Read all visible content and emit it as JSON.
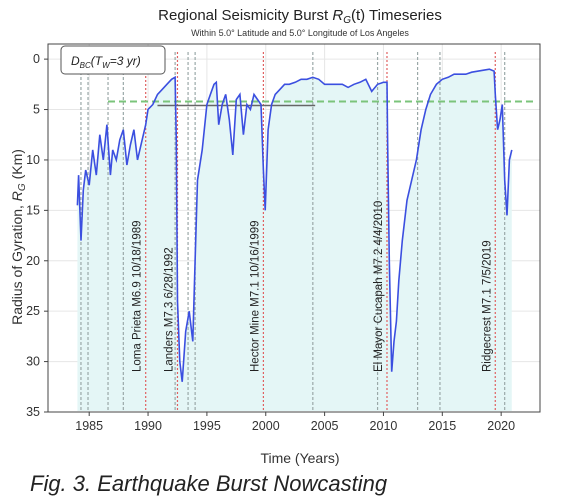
{
  "caption": "Fig. 3. Earthquake Burst Nowcasting",
  "colors": {
    "series": "#3b4fe0",
    "fill": "#e4f6f6",
    "threshold": "#7bc47b",
    "event_major": "#e06060",
    "event_minor": "#9aa8a8"
  },
  "chart_data": {
    "type": "line",
    "title": "Regional Seismicity Burst R_G(t) Timeseries",
    "title_parts": {
      "pre": "Regional Seismicity Burst ",
      "symbol": "R",
      "sub": "G",
      "post": "(t) Timeseries"
    },
    "subtitle": "Within 5.0° Latitude and 5.0° Longitude of Los Angeles",
    "xlabel": "Time (Years)",
    "ylabel": "Radius of Gyration, R_G (Km)",
    "ylabel_parts": {
      "pre": "Radius of Gyration, ",
      "symbol": "R",
      "sub": "G",
      "post": " (Km)"
    },
    "xlim": [
      1981.5,
      2023.3
    ],
    "ylim": [
      35,
      -1.5
    ],
    "y_inverted": true,
    "grid": true,
    "xticks": [
      1985,
      1990,
      1995,
      2000,
      2005,
      2010,
      2015,
      2020
    ],
    "yticks": [
      0,
      5,
      10,
      15,
      20,
      25,
      30,
      35
    ],
    "legend": {
      "placement": "top-left",
      "label": "D_BC(T_W=3 yr)",
      "label_parts": {
        "main": "D",
        "sub": "BC",
        "paren_open": "(T",
        "sub2": "W",
        "post": "=3 yr)"
      }
    },
    "threshold": {
      "value": 4.2
    },
    "secondary_band": {
      "x": [
        1990.8,
        2004.2
      ],
      "y": 4.6
    },
    "events": [
      {
        "label": "Loma Prieta  M6.9  10/18/1989",
        "x": 1989.8,
        "major": true,
        "show_label": true
      },
      {
        "label": "Landers  M7.3  6/28/1992",
        "x": 1992.5,
        "major": true,
        "show_label": true
      },
      {
        "label": "Hector Mine  M7.1  10/16/1999",
        "x": 1999.8,
        "major": true,
        "show_label": true
      },
      {
        "label": "El Mayor Cucapah  M7.2  4/4/2010",
        "x": 2010.3,
        "major": true,
        "show_label": true
      },
      {
        "label": "Ridgecrest  M7.1  7/5/2019",
        "x": 2019.5,
        "major": true,
        "show_label": true
      },
      {
        "label": "",
        "x": 1984.3,
        "major": false,
        "show_label": false
      },
      {
        "label": "",
        "x": 1984.9,
        "major": false,
        "show_label": false
      },
      {
        "label": "",
        "x": 1986.6,
        "major": false,
        "show_label": false
      },
      {
        "label": "",
        "x": 1987.9,
        "major": false,
        "show_label": false
      },
      {
        "label": "",
        "x": 1992.3,
        "major": false,
        "show_label": false
      },
      {
        "label": "",
        "x": 1993.4,
        "major": false,
        "show_label": false
      },
      {
        "label": "",
        "x": 1994.0,
        "major": false,
        "show_label": false
      },
      {
        "label": "",
        "x": 2004.0,
        "major": false,
        "show_label": false
      },
      {
        "label": "",
        "x": 2009.5,
        "major": false,
        "show_label": false
      },
      {
        "label": "",
        "x": 2012.9,
        "major": false,
        "show_label": false
      },
      {
        "label": "",
        "x": 2014.8,
        "major": false,
        "show_label": false
      },
      {
        "label": "",
        "x": 2020.3,
        "major": false,
        "show_label": false
      }
    ],
    "series": [
      {
        "x": [
          1984.0,
          1984.1,
          1984.3,
          1984.5,
          1984.7,
          1985.0,
          1985.3,
          1985.6,
          1985.9,
          1986.2,
          1986.5,
          1986.8,
          1987.0,
          1987.3,
          1987.6,
          1987.9,
          1988.2,
          1988.5,
          1988.8,
          1989.1,
          1989.4,
          1989.8,
          1990.0,
          1990.4,
          1990.8,
          1991.2,
          1991.6,
          1992.0,
          1992.3,
          1992.4,
          1992.5,
          1992.7,
          1992.9,
          1993.2,
          1993.5,
          1993.8,
          1994.0,
          1994.2,
          1994.6,
          1995.0,
          1995.3,
          1995.6,
          1995.8,
          1996.0,
          1996.3,
          1996.6,
          1996.9,
          1997.2,
          1997.5,
          1997.8,
          1998.1,
          1998.4,
          1998.7,
          1999.0,
          1999.3,
          1999.6,
          1999.8,
          1999.95,
          2000.2,
          2000.5,
          2000.8,
          2001.2,
          2001.6,
          2002.0,
          2002.5,
          2003.0,
          2003.5,
          2004.0,
          2004.5,
          2005.0,
          2005.5,
          2006.0,
          2006.5,
          2007.0,
          2007.5,
          2008.0,
          2008.5,
          2009.0,
          2009.5,
          2010.0,
          2010.2,
          2010.3,
          2010.35,
          2010.5,
          2010.7,
          2010.9,
          2011.1,
          2011.3,
          2011.6,
          2012.0,
          2012.4,
          2012.8,
          2013.2,
          2013.6,
          2014.0,
          2014.5,
          2015.0,
          2015.5,
          2016.0,
          2016.5,
          2017.0,
          2017.5,
          2018.0,
          2018.5,
          2019.0,
          2019.4,
          2019.5,
          2019.7,
          2019.9,
          2020.1,
          2020.3,
          2020.5,
          2020.7,
          2020.9
        ],
        "values": [
          14.5,
          11.5,
          18.0,
          13.0,
          11.0,
          12.5,
          9.0,
          11.5,
          7.5,
          10.0,
          6.5,
          11.5,
          9.0,
          10.0,
          8.0,
          7.0,
          10.5,
          8.5,
          7.0,
          10.0,
          8.5,
          6.5,
          5.0,
          4.5,
          3.5,
          3.0,
          2.5,
          2.0,
          1.8,
          8.0,
          24.0,
          30.0,
          32.0,
          27.0,
          25.0,
          28.0,
          20.0,
          12.0,
          9.0,
          4.5,
          3.5,
          2.5,
          2.3,
          6.5,
          4.5,
          3.5,
          6.0,
          9.5,
          4.0,
          3.5,
          7.5,
          4.5,
          5.0,
          3.5,
          4.0,
          4.5,
          11.0,
          15.0,
          7.0,
          4.5,
          3.5,
          3.0,
          2.5,
          2.5,
          2.3,
          2.0,
          2.0,
          1.8,
          2.0,
          2.5,
          2.5,
          2.5,
          2.5,
          2.8,
          2.5,
          2.3,
          2.0,
          3.2,
          2.5,
          2.3,
          2.3,
          2.3,
          8.0,
          20.0,
          31.0,
          28.0,
          26.0,
          22.0,
          18.0,
          14.0,
          12.0,
          10.0,
          7.0,
          5.0,
          3.5,
          2.5,
          2.0,
          1.8,
          1.5,
          1.5,
          1.5,
          1.3,
          1.2,
          1.1,
          1.0,
          1.2,
          3.5,
          7.0,
          6.0,
          4.5,
          12.0,
          15.5,
          10.0,
          9.0
        ]
      }
    ]
  }
}
